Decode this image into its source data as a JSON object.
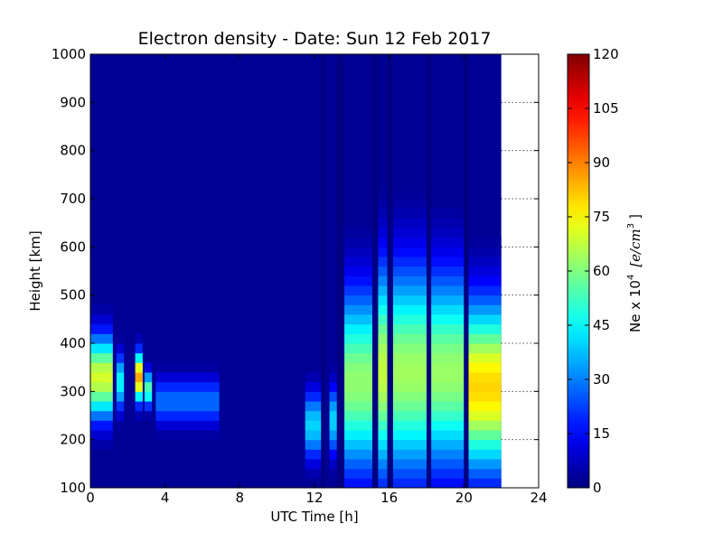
{
  "chart_data": {
    "type": "heatmap",
    "title": "Electron density - Date: Sun 12 Feb 2017",
    "xlabel": "UTC Time [h]",
    "ylabel": "Height [km]",
    "xlim": [
      0,
      24
    ],
    "ylim": [
      100,
      1000
    ],
    "x_ticks": [
      "0",
      "4",
      "8",
      "12",
      "16",
      "20",
      "24"
    ],
    "y_ticks": [
      "100",
      "200",
      "300",
      "400",
      "500",
      "600",
      "700",
      "800",
      "900",
      "1000"
    ],
    "data_extent_hours": [
      0,
      22
    ],
    "grid": "dotted horizontal at y ticks (visible where no data)",
    "colorbar": {
      "label_main": "Ne x 10",
      "label_exp": "4",
      "label_unit": "[e/cm",
      "label_unit_exp": "3",
      "label_close": "]",
      "range": [
        0,
        120
      ],
      "ticks": [
        "0",
        "15",
        "30",
        "45",
        "60",
        "75",
        "90",
        "105",
        "120"
      ],
      "colormap": "jet"
    },
    "blobs": [
      {
        "t0": 0.0,
        "t1": 1.2,
        "hpk": 330,
        "sigma": 60,
        "amp": 70
      },
      {
        "t0": 1.4,
        "t1": 1.8,
        "hpk": 320,
        "sigma": 40,
        "amp": 45
      },
      {
        "t0": 2.4,
        "t1": 2.8,
        "hpk": 330,
        "sigma": 35,
        "amp": 85
      },
      {
        "t0": 2.9,
        "t1": 3.3,
        "hpk": 305,
        "sigma": 25,
        "amp": 55
      },
      {
        "t0": 3.5,
        "t1": 6.9,
        "hpk": 280,
        "sigma": 35,
        "amp": 28
      },
      {
        "t0": 11.5,
        "t1": 12.4,
        "hpk": 230,
        "sigma": 50,
        "amp": 40
      },
      {
        "t0": 12.8,
        "t1": 13.2,
        "hpk": 240,
        "sigma": 50,
        "amp": 40
      },
      {
        "t0": 13.6,
        "t1": 15.1,
        "hpk": 320,
        "sigma": 130,
        "amp": 62
      },
      {
        "t0": 15.4,
        "t1": 15.9,
        "hpk": 340,
        "sigma": 150,
        "amp": 68
      },
      {
        "t0": 16.2,
        "t1": 18.0,
        "hpk": 340,
        "sigma": 150,
        "amp": 64
      },
      {
        "t0": 18.2,
        "t1": 20.0,
        "hpk": 340,
        "sigma": 140,
        "amp": 63
      },
      {
        "t0": 20.2,
        "t1": 22.0,
        "hpk": 310,
        "sigma": 120,
        "amp": 80
      }
    ],
    "gaps_hours": [
      {
        "t0": 12.35,
        "t1": 12.55
      },
      {
        "t0": 13.2,
        "t1": 13.55
      },
      {
        "t0": 15.1,
        "t1": 15.4
      },
      {
        "t0": 15.9,
        "t1": 16.2
      },
      {
        "t0": 18.0,
        "t1": 18.25
      },
      {
        "t0": 20.0,
        "t1": 20.25
      }
    ]
  }
}
